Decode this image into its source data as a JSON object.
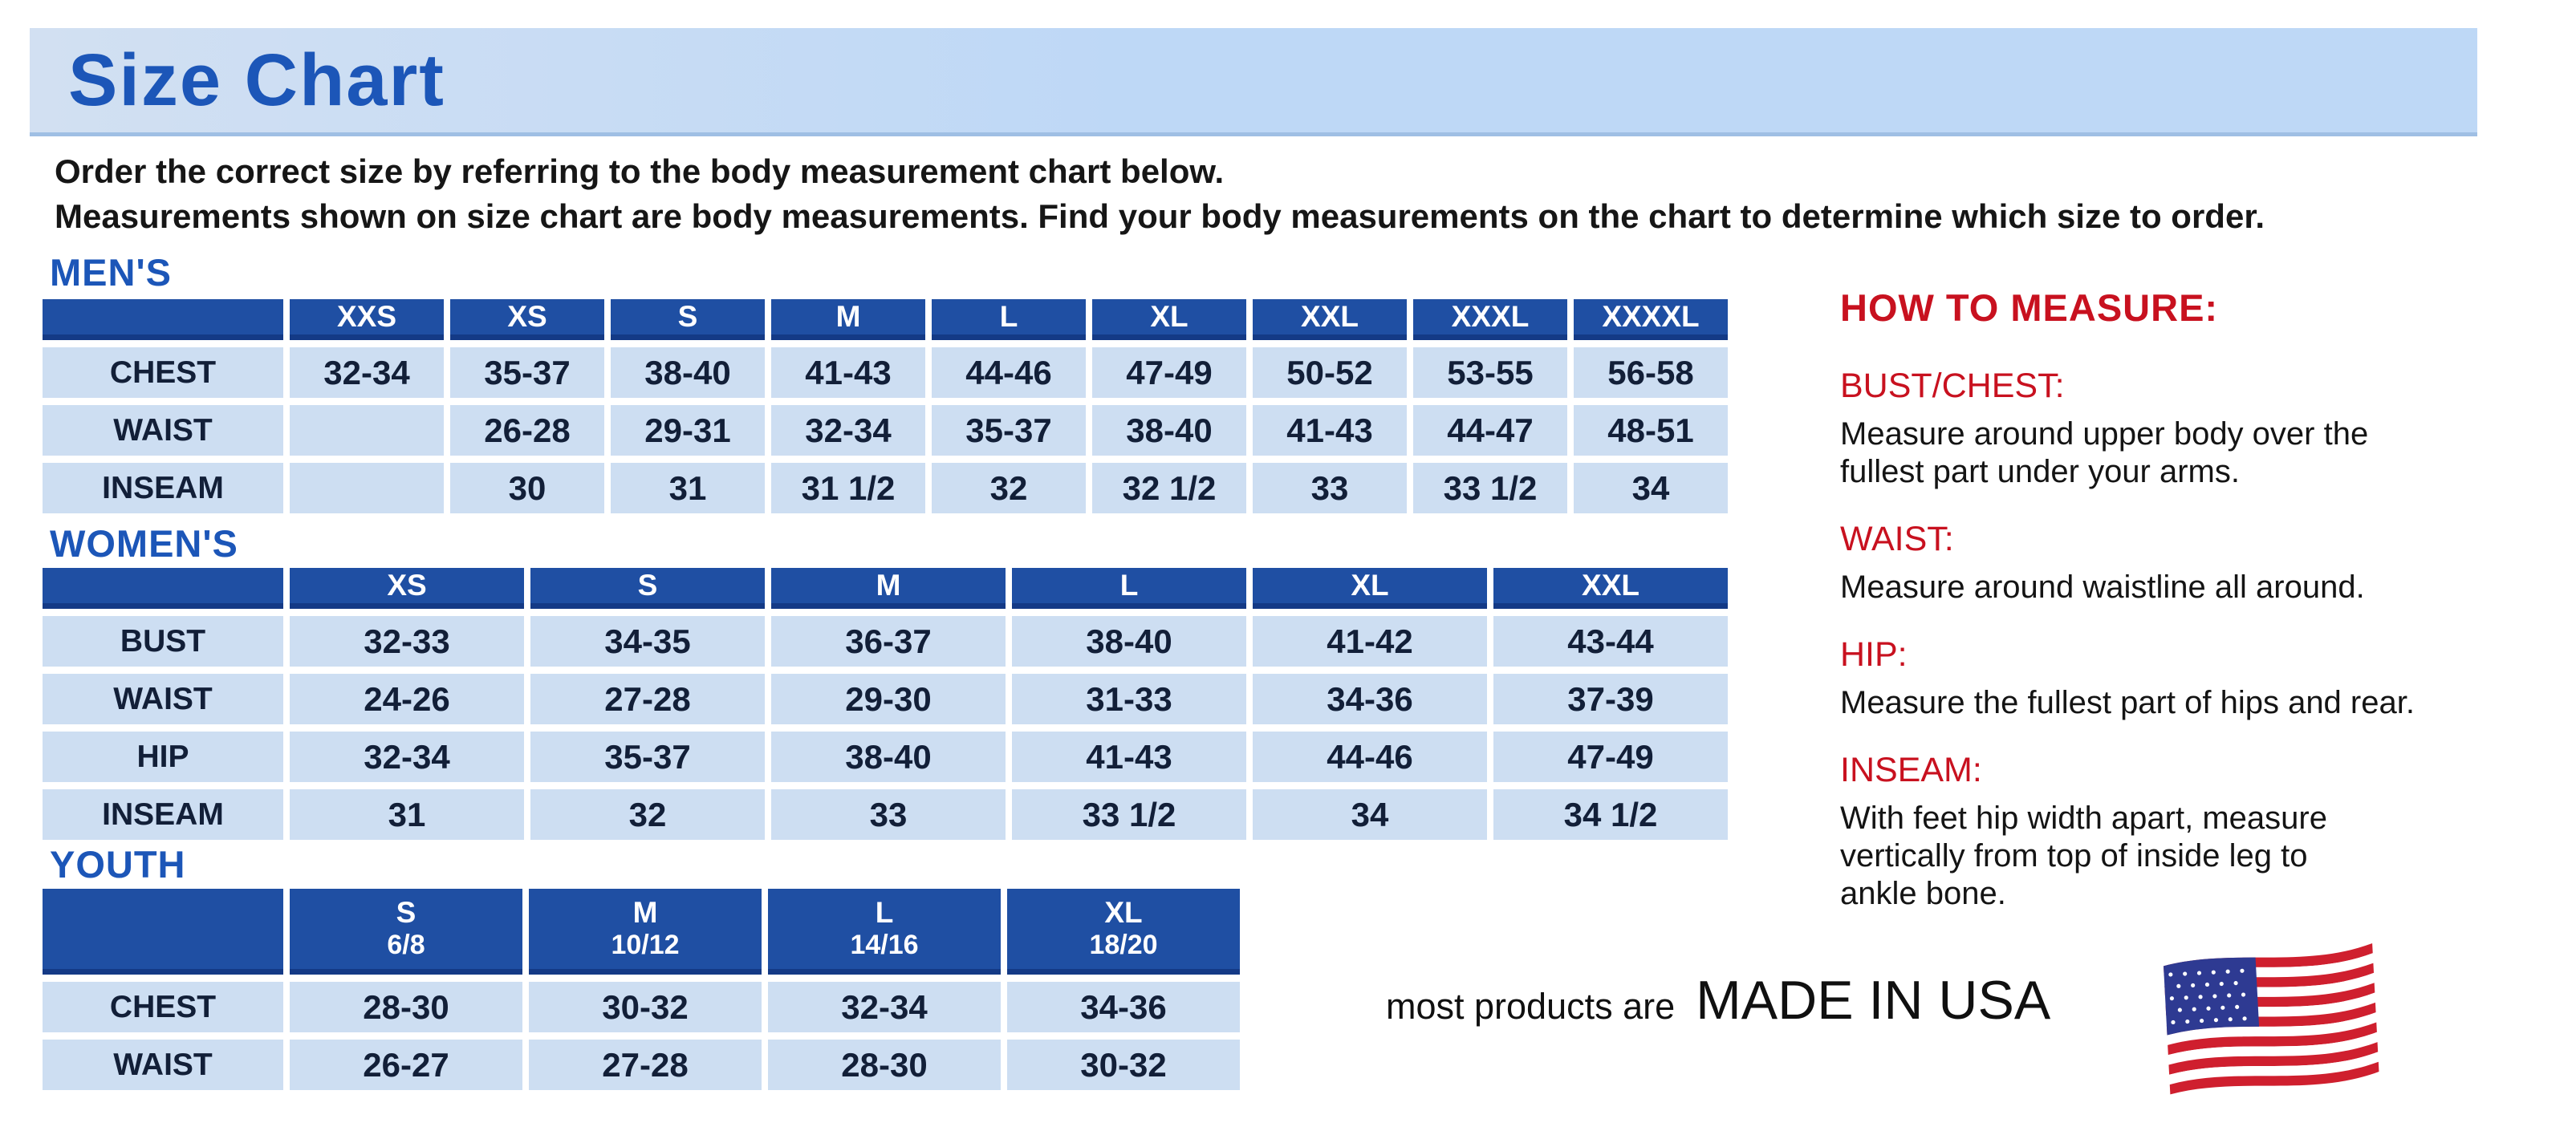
{
  "page": {
    "title": "Size Chart",
    "intro_lines": [
      "Order the correct size by referring to the body measurement chart below.",
      "Measurements shown on size chart are body measurements.  Find your body measurements on the chart to determine which size to order."
    ]
  },
  "tables": {
    "mens": {
      "heading": "MEN'S",
      "columns": [
        "XXS",
        "XS",
        "S",
        "M",
        "L",
        "XL",
        "XXL",
        "XXXL",
        "XXXXL"
      ],
      "rows": [
        {
          "label": "CHEST",
          "values": [
            "32-34",
            "35-37",
            "38-40",
            "41-43",
            "44-46",
            "47-49",
            "50-52",
            "53-55",
            "56-58"
          ]
        },
        {
          "label": "WAIST",
          "values": [
            "",
            "26-28",
            "29-31",
            "32-34",
            "35-37",
            "38-40",
            "41-43",
            "44-47",
            "48-51"
          ]
        },
        {
          "label": "INSEAM",
          "values": [
            "",
            "30",
            "31",
            "31 1/2",
            "32",
            "32 1/2",
            "33",
            "33 1/2",
            "34"
          ]
        }
      ]
    },
    "womens": {
      "heading": "WOMEN'S",
      "columns": [
        "XS",
        "S",
        "M",
        "L",
        "XL",
        "XXL"
      ],
      "rows": [
        {
          "label": "BUST",
          "values": [
            "32-33",
            "34-35",
            "36-37",
            "38-40",
            "41-42",
            "43-44"
          ]
        },
        {
          "label": "WAIST",
          "values": [
            "24-26",
            "27-28",
            "29-30",
            "31-33",
            "34-36",
            "37-39"
          ]
        },
        {
          "label": "HIP",
          "values": [
            "32-34",
            "35-37",
            "38-40",
            "41-43",
            "44-46",
            "47-49"
          ]
        },
        {
          "label": "INSEAM",
          "values": [
            "31",
            "32",
            "33",
            "33 1/2",
            "34",
            "34 1/2"
          ]
        }
      ]
    },
    "youth": {
      "heading": "YOUTH",
      "columns": [
        {
          "size": "S",
          "range": "6/8"
        },
        {
          "size": "M",
          "range": "10/12"
        },
        {
          "size": "L",
          "range": "14/16"
        },
        {
          "size": "XL",
          "range": "18/20"
        }
      ],
      "rows": [
        {
          "label": "CHEST",
          "values": [
            "28-30",
            "30-32",
            "32-34",
            "34-36"
          ]
        },
        {
          "label": "WAIST",
          "values": [
            "26-27",
            "27-28",
            "28-30",
            "30-32"
          ]
        }
      ]
    }
  },
  "how_to_measure": {
    "heading": "HOW TO MEASURE:",
    "items": [
      {
        "label": "BUST/CHEST:",
        "text": "Measure around upper body over the\nfullest part under your arms."
      },
      {
        "label": "WAIST:",
        "text": "Measure around waistline all around."
      },
      {
        "label": "HIP:",
        "text": "Measure the fullest part of hips and rear."
      },
      {
        "label": "INSEAM:",
        "text": "With feet hip width apart, measure\nvertically from top of inside leg to\nankle bone."
      }
    ]
  },
  "footer": {
    "prefix": "most products are",
    "emphasis": "MADE IN USA",
    "flag_icon": "usa-flag-icon"
  },
  "colors": {
    "title_blue": "#1c56b8",
    "bar_bg": "#bed8f6",
    "bar_bg2": "#d2e0f2",
    "header_blue": "#1f4fa3",
    "header_edge": "#143a86",
    "cell_bg": "#cddef2",
    "text_dark": "#121f38",
    "red": "#c8111f",
    "flag_red": "#cf1f2e",
    "flag_blue": "#2e3a92"
  }
}
